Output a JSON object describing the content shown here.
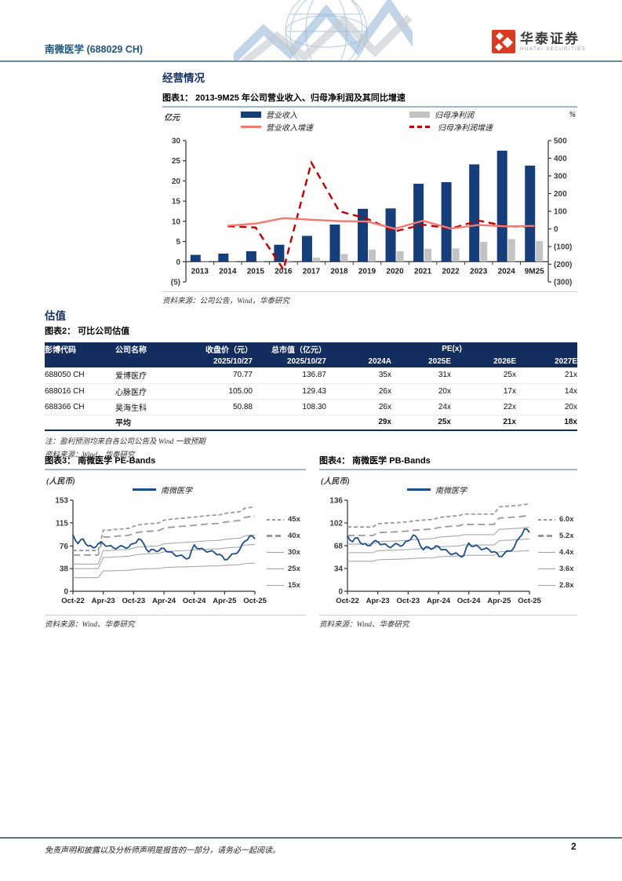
{
  "header": {
    "stock_title": "南微医学 (688029 CH)",
    "brand_cn": "华泰证券",
    "brand_en": "HUATAI SECURITIES",
    "logo_color": "#d93a21"
  },
  "sections": {
    "operations_title": "经营情况",
    "valuation_title": "估值"
  },
  "figures": {
    "fig1": {
      "title_full": "图表1： 2013-9M25 年公司营业收入、归母净利润及其同比增速",
      "source": "资料来源：公司公告，Wind，华泰研究"
    },
    "fig2": {
      "title_full": "图表2： 可比公司估值",
      "note": "注：盈利预测均来自各公司公告及 Wind 一致预期",
      "source": "资料来源：Wind，华泰研究"
    },
    "fig3": {
      "title_full": "图表3： 南微医学 PE-Bands",
      "source": "资料来源：Wind、华泰研究"
    },
    "fig4": {
      "title_full": "图表4： 南微医学 PB-Bands",
      "source": "资料来源：Wind、华泰研究"
    }
  },
  "table": {
    "group_header": "PE(x)",
    "col_headers": [
      "彭博代码",
      "公司名称",
      "收盘价（元）",
      "总市值（亿元）"
    ],
    "sub_headers": [
      "",
      "",
      "2025/10/27",
      "2025/10/27",
      "2024A",
      "2025E",
      "2026E",
      "2027E"
    ],
    "rows": [
      [
        "688050 CH",
        "爱博医疗",
        "70.77",
        "136.87",
        "35x",
        "31x",
        "25x",
        "21x"
      ],
      [
        "688016 CH",
        "心脉医疗",
        "105.00",
        "129.43",
        "26x",
        "20x",
        "17x",
        "14x"
      ],
      [
        "688366 CH",
        "昊海生科",
        "50.88",
        "108.30",
        "26x",
        "24x",
        "22x",
        "20x"
      ]
    ],
    "avg_row": {
      "label": "平均",
      "values": [
        "29x",
        "25x",
        "21x",
        "18x"
      ]
    }
  },
  "chart_data": [
    {
      "id": "fig1",
      "type": "bar",
      "title": "2013-9M25 年公司营业收入、归母净利润及其同比增速",
      "categories": [
        "2013",
        "2014",
        "2015",
        "2016",
        "2017",
        "2018",
        "2019",
        "2020",
        "2021",
        "2022",
        "2023",
        "2024",
        "9M25"
      ],
      "left_axis": {
        "label": "亿元",
        "min": -5,
        "max": 30,
        "tick_values": [
          30,
          25,
          20,
          15,
          10,
          5,
          0,
          -5
        ],
        "ticks": [
          "30",
          "25",
          "20",
          "15",
          "10",
          "5",
          "0",
          "(5)"
        ]
      },
      "right_axis": {
        "label": "%",
        "min": -300,
        "max": 500,
        "tick_values": [
          500,
          400,
          300,
          200,
          100,
          0,
          -100,
          -200,
          -300
        ],
        "ticks": [
          "500",
          "400",
          "300",
          "200",
          "100",
          "0",
          "(100)",
          "(200)",
          "(300)"
        ]
      },
      "series": [
        {
          "name": "营业收入",
          "type": "bar",
          "axis": "left",
          "color": "#153e7a",
          "values": [
            1.7,
            2.0,
            2.6,
            4.2,
            6.4,
            9.2,
            13.1,
            13.2,
            19.3,
            19.7,
            24.1,
            27.5,
            23.8
          ]
        },
        {
          "name": "归母净利润",
          "type": "bar",
          "axis": "left",
          "color": "#c3c3c3",
          "values": [
            0.1,
            0.2,
            0.2,
            -0.3,
            1.0,
            1.9,
            3.0,
            2.6,
            3.2,
            3.3,
            4.9,
            5.6,
            5.1
          ]
        },
        {
          "name": "营业收入增速",
          "type": "line",
          "axis": "right",
          "color": "#f4796f",
          "dashed": false,
          "values": [
            null,
            18,
            30,
            61,
            52,
            44,
            42,
            1,
            46,
            2,
            22,
            14,
            17
          ]
        },
        {
          "name": "归母净利润增速",
          "type": "line",
          "axis": "right",
          "color": "#c00000",
          "dashed": true,
          "values": [
            null,
            15,
            8,
            -230,
            375,
            100,
            58,
            -14,
            24,
            2,
            47,
            15,
            12
          ]
        }
      ],
      "grid": false,
      "legend_position": "top"
    },
    {
      "id": "fig3",
      "type": "line",
      "title": "南微医学 PE-Bands",
      "unit_label": "(人民币)",
      "legend_label": "南微医学",
      "price_color": "#1c4d8f",
      "ylim": [
        0,
        153
      ],
      "y_ticks": [
        153,
        115,
        76,
        38,
        0
      ],
      "x_ticks": [
        "Oct-22",
        "Apr-23",
        "Oct-23",
        "Apr-24",
        "Oct-24",
        "Apr-25",
        "Oct-25"
      ],
      "x_tick_idx": [
        0,
        6,
        12,
        18,
        24,
        30,
        36
      ],
      "price": [
        95,
        80,
        88,
        76,
        73,
        80,
        80,
        76,
        73,
        74,
        75,
        74,
        80,
        88,
        80,
        66,
        70,
        68,
        72,
        66,
        62,
        60,
        57,
        56,
        78,
        71,
        69,
        67,
        65,
        62,
        53,
        58,
        63,
        70,
        84,
        93,
        88
      ],
      "eps_ttm": [
        1.52,
        1.52,
        1.52,
        1.52,
        1.52,
        1.52,
        2.28,
        2.28,
        2.3,
        2.32,
        2.33,
        2.35,
        2.42,
        2.48,
        2.5,
        2.52,
        2.53,
        2.55,
        2.65,
        2.68,
        2.7,
        2.72,
        2.73,
        2.75,
        2.77,
        2.79,
        2.81,
        2.83,
        2.84,
        2.85,
        2.9,
        2.93,
        2.95,
        2.97,
        3.1,
        3.13,
        3.15
      ],
      "bands": [
        {
          "label": "45x",
          "mult": 45,
          "dashed": true
        },
        {
          "label": "40x",
          "mult": 40,
          "dashed": true
        },
        {
          "label": "30x",
          "mult": 30,
          "dashed": false
        },
        {
          "label": "25x",
          "mult": 25,
          "dashed": false
        },
        {
          "label": "15x",
          "mult": 15,
          "dashed": false
        }
      ]
    },
    {
      "id": "fig4",
      "type": "line",
      "title": "南微医学 PB-Bands",
      "unit_label": "(人民币)",
      "legend_label": "南微医学",
      "price_color": "#1c4d8f",
      "ylim": [
        0,
        136
      ],
      "y_ticks": [
        136,
        102,
        68,
        34,
        0
      ],
      "x_ticks": [
        "Oct-22",
        "Apr-23",
        "Oct-23",
        "Apr-24",
        "Oct-24",
        "Apr-25",
        "Oct-25"
      ],
      "x_tick_idx": [
        0,
        6,
        12,
        18,
        24,
        30,
        36
      ],
      "price": [
        83,
        74,
        80,
        70,
        68,
        73,
        74,
        70,
        67,
        68,
        70,
        69,
        75,
        84,
        76,
        62,
        66,
        64,
        67,
        62,
        58,
        56,
        54,
        53,
        72,
        67,
        66,
        63,
        62,
        59,
        52,
        56,
        60,
        66,
        80,
        93,
        88
      ],
      "bps_ttm": [
        16.0,
        16.0,
        16.0,
        16.0,
        16.0,
        16.0,
        16.8,
        16.9,
        17.0,
        17.0,
        17.1,
        17.2,
        17.3,
        17.5,
        17.6,
        17.7,
        17.8,
        17.9,
        18.3,
        18.5,
        18.6,
        18.7,
        18.8,
        19.2,
        19.2,
        19.2,
        19.2,
        19.2,
        19.2,
        19.2,
        21.0,
        21.1,
        21.2,
        21.3,
        21.4,
        21.6,
        21.7
      ],
      "bands": [
        {
          "label": "6.0x",
          "mult": 6.0,
          "dashed": true
        },
        {
          "label": "5.2x",
          "mult": 5.2,
          "dashed": true
        },
        {
          "label": "4.4x",
          "mult": 4.4,
          "dashed": false
        },
        {
          "label": "3.6x",
          "mult": 3.6,
          "dashed": false
        },
        {
          "label": "2.8x",
          "mult": 2.8,
          "dashed": false
        }
      ]
    }
  ],
  "footer": {
    "disclaimer": "免责声明和披露以及分析师声明是报告的一部分，请务必一起阅读。",
    "page_number": "2"
  }
}
